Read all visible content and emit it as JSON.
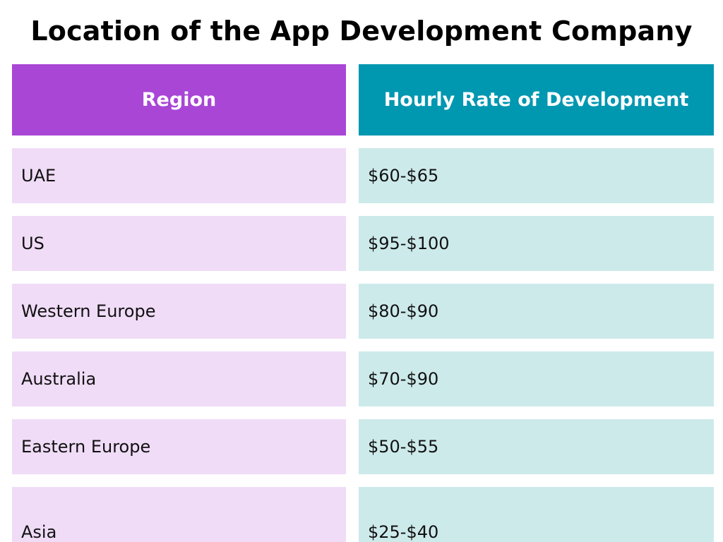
{
  "chart_data": {
    "type": "table",
    "title": "Location of the App Development Company",
    "columns": [
      "Region",
      "Hourly Rate of Development"
    ],
    "rows": [
      {
        "region": "UAE",
        "rate": "$60-$65"
      },
      {
        "region": "US",
        "rate": "$95-$100"
      },
      {
        "region": "Western Europe",
        "rate": "$80-$90"
      },
      {
        "region": "Australia",
        "rate": "$70-$90"
      },
      {
        "region": "Eastern Europe",
        "rate": "$50-$55"
      },
      {
        "region": "Asia",
        "rate": "$25-$40"
      }
    ]
  },
  "colors": {
    "region_header": "#a946d6",
    "rate_header": "#0097b1",
    "region_cell": "#f0dcf7",
    "rate_cell": "#cdeaeb"
  }
}
